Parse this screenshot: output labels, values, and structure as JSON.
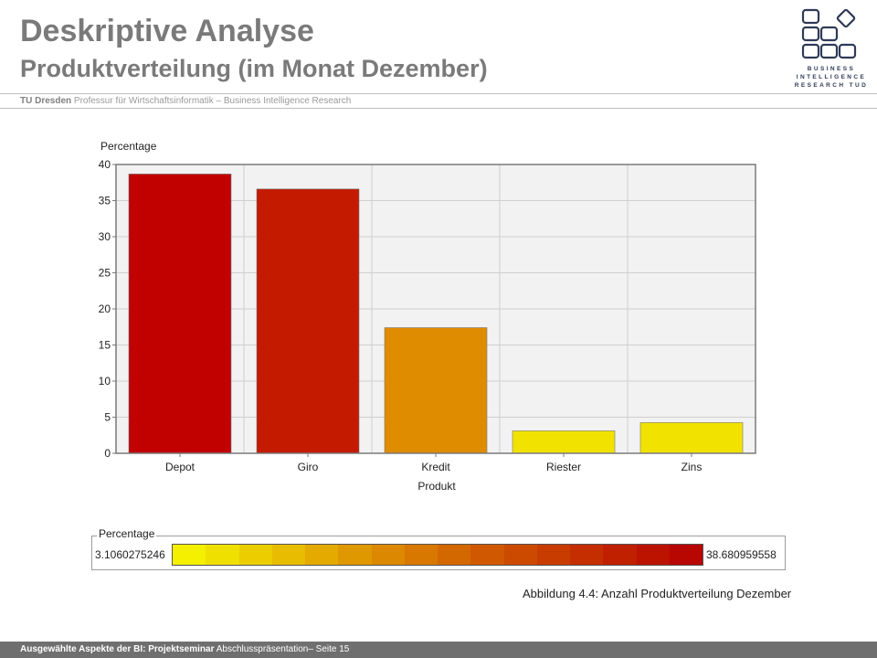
{
  "header": {
    "title": "Deskriptive Analyse",
    "subtitle": "Produktverteilung (im Monat Dezember)",
    "org_bold": "TU Dresden",
    "org_rest": " Professur für Wirtschaftsinformatik – Business Intelligence Research"
  },
  "logo": {
    "icon": "squares-logo-icon",
    "line1": "BUSINESS",
    "line2": "INTELLIGENCE",
    "line3": "RESEARCH TUD",
    "color": "#2f3a57"
  },
  "chart_data": {
    "type": "bar",
    "title": "",
    "xlabel": "Produkt",
    "ylabel": "Percentage",
    "categories": [
      "Depot",
      "Giro",
      "Kredit",
      "Riester",
      "Zins"
    ],
    "values": [
      38.68,
      36.6,
      17.4,
      3.11,
      4.25
    ],
    "colors": [
      "#c10000",
      "#c41a00",
      "#e08c00",
      "#f2e200",
      "#f2e200"
    ],
    "ylim": [
      0,
      40
    ],
    "yticks": [
      "0",
      "5",
      "10",
      "15",
      "20",
      "25",
      "30",
      "35",
      "40"
    ],
    "grid": true,
    "legend": {
      "title": "Percentage",
      "min_label": "3.1060275246",
      "max_label": "38.680959558",
      "gradient_colors": [
        "#f4f000",
        "#f0e000",
        "#ecce00",
        "#e8bc00",
        "#e4aa00",
        "#e09800",
        "#dc8800",
        "#d87800",
        "#d46800",
        "#d05800",
        "#cc4a00",
        "#c83c00",
        "#c42e00",
        "#c02000",
        "#bc1200",
        "#b80600"
      ]
    }
  },
  "caption": "Abbildung 4.4: Anzahl Produktverteilung Dezember",
  "footer": {
    "bold": "Ausgewählte Aspekte der BI: Projektseminar",
    "rest": " Abschlusspräsentation– Seite 15"
  }
}
